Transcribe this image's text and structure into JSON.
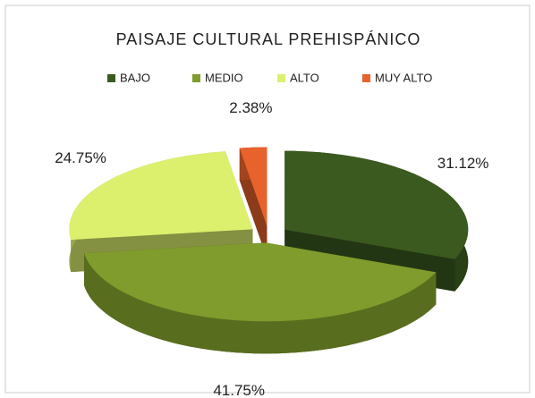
{
  "chart_data": {
    "type": "pie3d",
    "title": "PAISAJE CULTURAL PREHISPÁNICO",
    "categories": [
      "BAJO",
      "MEDIO",
      "ALTO",
      "MUY ALTO"
    ],
    "values": [
      31.12,
      41.75,
      24.75,
      2.38
    ],
    "value_labels": [
      "31.12%",
      "41.75%",
      "24.75%",
      "2.38%"
    ],
    "colors": [
      "#3b5a1f",
      "#7f9c2c",
      "#dcf06e",
      "#e8622c"
    ],
    "legend": "top"
  }
}
